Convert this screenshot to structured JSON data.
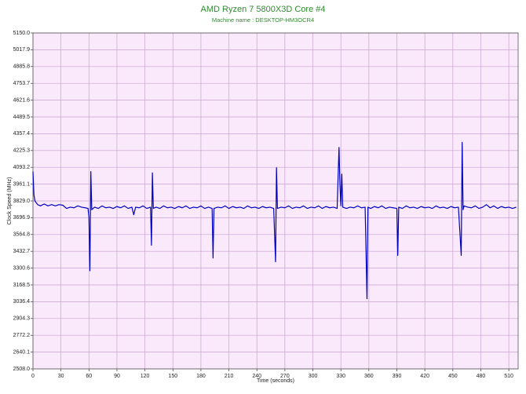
{
  "chart_data": {
    "type": "line",
    "title": "AMD Ryzen 7 5800X3D Core #4",
    "subtitle": "Machine name : DESKTOP-HM3OCR4",
    "x_label": "Time (seconds)",
    "y_label": "Clock Speed (MHz)",
    "xlim": [
      0,
      520
    ],
    "ylim": [
      2508,
      5150
    ],
    "xticks": [
      0,
      30,
      60,
      90,
      120,
      150,
      180,
      210,
      240,
      270,
      300,
      330,
      360,
      390,
      420,
      450,
      480,
      510
    ],
    "yticks": [
      {
        "value": 2508,
        "label": "2508.0"
      },
      2640.1,
      2772.2,
      2904.3,
      3036.4,
      3168.5,
      3300.6,
      3432.7,
      3564.8,
      3696.9,
      {
        "value": 3829,
        "label": "3829.0"
      },
      3961.1,
      4093.2,
      4225.3,
      4357.4,
      4489.5,
      4621.6,
      4753.7,
      4885.8,
      5017.9,
      {
        "value": 5150,
        "label": "5150.0"
      }
    ],
    "grid": true,
    "series": [
      {
        "color": "#0000c0",
        "x": [
          0,
          1,
          2,
          5,
          8,
          12,
          16,
          20,
          24,
          28,
          32,
          36,
          40,
          44,
          48,
          52,
          56,
          59,
          60,
          61,
          62,
          63,
          66,
          70,
          74,
          78,
          82,
          86,
          90,
          94,
          98,
          102,
          106,
          108,
          110,
          114,
          118,
          122,
          126,
          127,
          128,
          129,
          132,
          136,
          140,
          144,
          148,
          152,
          156,
          160,
          164,
          168,
          172,
          176,
          180,
          184,
          188,
          192,
          193,
          194,
          198,
          202,
          206,
          210,
          214,
          218,
          222,
          226,
          230,
          234,
          238,
          242,
          246,
          250,
          254,
          258,
          260,
          261,
          262,
          266,
          270,
          274,
          278,
          282,
          286,
          290,
          294,
          298,
          302,
          306,
          310,
          314,
          318,
          322,
          326,
          328,
          329,
          330,
          331,
          332,
          336,
          340,
          344,
          348,
          352,
          356,
          358,
          359,
          362,
          366,
          370,
          374,
          378,
          382,
          386,
          390,
          391,
          392,
          396,
          400,
          404,
          408,
          412,
          416,
          420,
          424,
          428,
          432,
          436,
          440,
          444,
          448,
          452,
          456,
          459,
          460,
          461,
          462,
          466,
          470,
          474,
          478,
          482,
          486,
          490,
          494,
          498,
          502,
          506,
          510,
          514,
          518
        ],
        "values": [
          4060,
          3880,
          3830,
          3800,
          3790,
          3805,
          3790,
          3800,
          3790,
          3800,
          3795,
          3770,
          3780,
          3775,
          3790,
          3780,
          3775,
          3770,
          3700,
          3280,
          4060,
          3760,
          3780,
          3770,
          3790,
          3775,
          3780,
          3770,
          3785,
          3775,
          3790,
          3770,
          3780,
          3720,
          3780,
          3775,
          3790,
          3770,
          3780,
          3480,
          4050,
          3770,
          3780,
          3770,
          3790,
          3775,
          3780,
          3770,
          3785,
          3775,
          3790,
          3770,
          3780,
          3775,
          3790,
          3770,
          3780,
          3770,
          3380,
          3770,
          3780,
          3775,
          3790,
          3770,
          3785,
          3775,
          3780,
          3770,
          3790,
          3775,
          3780,
          3770,
          3785,
          3775,
          3780,
          3770,
          3350,
          4090,
          3770,
          3780,
          3775,
          3790,
          3770,
          3780,
          3775,
          3790,
          3770,
          3780,
          3775,
          3790,
          3770,
          3785,
          3775,
          3780,
          3770,
          4250,
          3960,
          3790,
          4040,
          3780,
          3770,
          3780,
          3775,
          3790,
          3775,
          3780,
          3060,
          3780,
          3770,
          3785,
          3775,
          3790,
          3770,
          3780,
          3775,
          3770,
          3400,
          3780,
          3770,
          3790,
          3775,
          3780,
          3770,
          3785,
          3775,
          3780,
          3770,
          3790,
          3775,
          3780,
          3770,
          3785,
          3775,
          3780,
          3400,
          4290,
          3760,
          3790,
          3780,
          3775,
          3790,
          3770,
          3780,
          3800,
          3775,
          3790,
          3770,
          3785,
          3775,
          3780,
          3770,
          3780
        ]
      }
    ]
  }
}
